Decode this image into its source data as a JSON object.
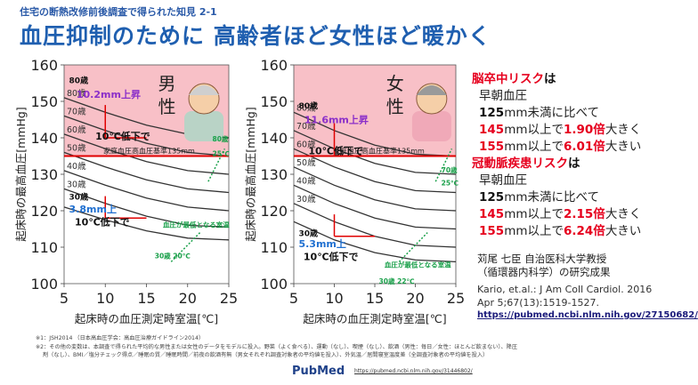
{
  "header": {
    "subtitle": "住宅の断熱改修前後調査で得られた知見 2-1",
    "title": "血圧抑制のために 高齢者ほど女性ほど暖かく"
  },
  "chart_data": [
    {
      "type": "line",
      "panel": "男性",
      "panel_label": "男\n性",
      "xlabel": "起床時の血圧測定時室温[℃]",
      "ylabel": "起床時の最高血圧[mmHg]",
      "xlim": [
        5,
        25
      ],
      "ylim": [
        100,
        160
      ],
      "x_ticks": [
        "5",
        "10",
        "15",
        "20",
        "25"
      ],
      "y_ticks": [
        "100",
        "110",
        "120",
        "130",
        "140",
        "150",
        "160"
      ],
      "reference_line": {
        "y": 135,
        "label": "家庭血圧高血圧基準135mm"
      },
      "x": [
        5,
        10,
        15,
        20,
        25
      ],
      "series": [
        {
          "name": "80歳",
          "values": [
            151,
            147,
            143.5,
            141,
            140
          ]
        },
        {
          "name": "70歳",
          "values": [
            146,
            142,
            138.5,
            136,
            135
          ]
        },
        {
          "name": "60歳",
          "values": [
            141,
            137,
            133.5,
            131,
            130
          ]
        },
        {
          "name": "50歳",
          "values": [
            136,
            132,
            128.5,
            126,
            125
          ]
        },
        {
          "name": "40歳",
          "values": [
            131,
            127,
            123.5,
            121,
            120
          ]
        },
        {
          "name": "30歳",
          "values": [
            126,
            122,
            118.5,
            116,
            115.5
          ]
        },
        {
          "name": "",
          "values": [
            121,
            117.5,
            114.5,
            112.5,
            112
          ]
        }
      ],
      "annotations": [
        {
          "text": "80歳",
          "kind": "age_label"
        },
        {
          "text": "10.2mm上昇",
          "kind": "rise"
        },
        {
          "text": "10℃低下で",
          "kind": "drop"
        },
        {
          "text": "30歳",
          "kind": "age_label"
        },
        {
          "text": "3.8mm上",
          "kind": "rise"
        },
        {
          "text": "10℃低下で",
          "kind": "drop"
        },
        {
          "text": "血圧が最低となる室温",
          "kind": "note"
        },
        {
          "text": "30歳 20℃",
          "kind": "note"
        },
        {
          "text": "80歳",
          "kind": "note"
        },
        {
          "text": "25℃",
          "kind": "note"
        }
      ]
    },
    {
      "type": "line",
      "panel": "女性",
      "panel_label": "女\n性",
      "xlabel": "起床時の血圧測定時室温[℃]",
      "ylabel": "起床時の最高血圧[mmHg]",
      "xlim": [
        5,
        25
      ],
      "ylim": [
        100,
        160
      ],
      "x_ticks": [
        "5",
        "10",
        "15",
        "20",
        "25"
      ],
      "y_ticks": [
        "100",
        "110",
        "120",
        "130",
        "140",
        "150",
        "160"
      ],
      "reference_line": {
        "y": 135,
        "label": "家庭血圧高血圧基準135mm"
      },
      "x": [
        5,
        10,
        15,
        20,
        25
      ],
      "series": [
        {
          "name": "80歳",
          "values": [
            147,
            142,
            138,
            135.5,
            135
          ]
        },
        {
          "name": "70歳",
          "values": [
            142,
            137,
            133,
            130.5,
            130
          ]
        },
        {
          "name": "60歳",
          "values": [
            137,
            132,
            128,
            125.5,
            125
          ]
        },
        {
          "name": "50歳",
          "values": [
            132,
            127,
            123,
            120.5,
            120
          ]
        },
        {
          "name": "40歳",
          "values": [
            127,
            122,
            118,
            115.5,
            115
          ]
        },
        {
          "name": "30歳",
          "values": [
            122,
            117,
            113,
            110.5,
            110
          ]
        },
        {
          "name": "",
          "values": [
            117,
            112,
            108.5,
            106.5,
            106
          ]
        }
      ],
      "annotations": [
        {
          "text": "80歳",
          "kind": "age_label"
        },
        {
          "text": "11.6mm上昇",
          "kind": "rise"
        },
        {
          "text": "10℃低下で",
          "kind": "drop"
        },
        {
          "text": "30歳",
          "kind": "age_label"
        },
        {
          "text": "5.3mm上",
          "kind": "rise"
        },
        {
          "text": "10℃低下で",
          "kind": "drop"
        },
        {
          "text": "血圧が最低となる室温",
          "kind": "note"
        },
        {
          "text": "30歳 22℃",
          "kind": "note"
        },
        {
          "text": "70歳",
          "kind": "note"
        },
        {
          "text": "25℃",
          "kind": "note"
        }
      ]
    }
  ],
  "right_panel": {
    "stroke_risk": "脳卒中リスク",
    "ha": "は",
    "morning_bp": "早朝血圧",
    "base_num": "125",
    "base_rest": "mm未満に比べて",
    "l1_num": "145",
    "l1_mid": "mm以上で",
    "l1_ratio": "1.90倍",
    "l1_tail": "大きく",
    "l2_num": "155",
    "l2_mid": "mm以上で",
    "l2_ratio": "6.01倍",
    "l2_tail": "大きい",
    "chd_risk": "冠動脈疾患リスク",
    "chd_ha": "は",
    "morning_bp2": "早朝血圧",
    "base_num2": "125",
    "base_rest2": "mm未満に比べて",
    "l3_num": "145",
    "l3_mid": "mm以上で",
    "l3_ratio": "2.15倍",
    "l3_tail": "大きく",
    "l4_num": "155",
    "l4_mid": "mm以上で",
    "l4_ratio": "6.24倍",
    "l4_tail": "大きい"
  },
  "credit": {
    "line1": "苅尾 七臣 自治医科大学教授",
    "line2": "（循環器内科学）の研究成果"
  },
  "citation": {
    "line1": "Kario, et.al.: J Am Coll Cardiol. 2016",
    "line2": "Apr 5;67(13):1519-1527.",
    "url": "https://pubmed.ncbi.nlm.nih.gov/27150682/"
  },
  "footnotes": {
    "f1": "※1：JSH2014 （日本高血圧学会：高血圧治療ガイドライン2014）",
    "f2": "※2：その他の変数は、本調査で得られた平均的な男性または女性のデータをモデルに投入。野菜（よく食べる）、運動（なし）、喫煙（なし）、飲酒（男性：毎日／女性：ほとんど飲まない）、降圧",
    "f3": "剤（なし）、BMI／塩分チェック得点／睡眠の質／睡眠時間／前夜の飲酒有無（男女それぞれ調査対象者の平均値を投入）、外気温／居間寝室温度差（全調査対象者の平均値を投入）"
  },
  "pubmed": {
    "logo": "PubMed",
    "url": "https://pubmed.ncbi.nlm.nih.gov/31446802/"
  },
  "colors": {
    "title": "#1f5fb0",
    "risk_red": "#e6001e",
    "pink_zone": "#f7b5bd",
    "reference_red": "#e00000",
    "rise_purple": "#8b2fc9",
    "rise_blue": "#1f6fd0",
    "note_green": "#1aa04a"
  },
  "icons": [
    "elderly-man-illustration-icon",
    "elderly-woman-illustration-icon",
    "pubmed-logo-icon"
  ]
}
